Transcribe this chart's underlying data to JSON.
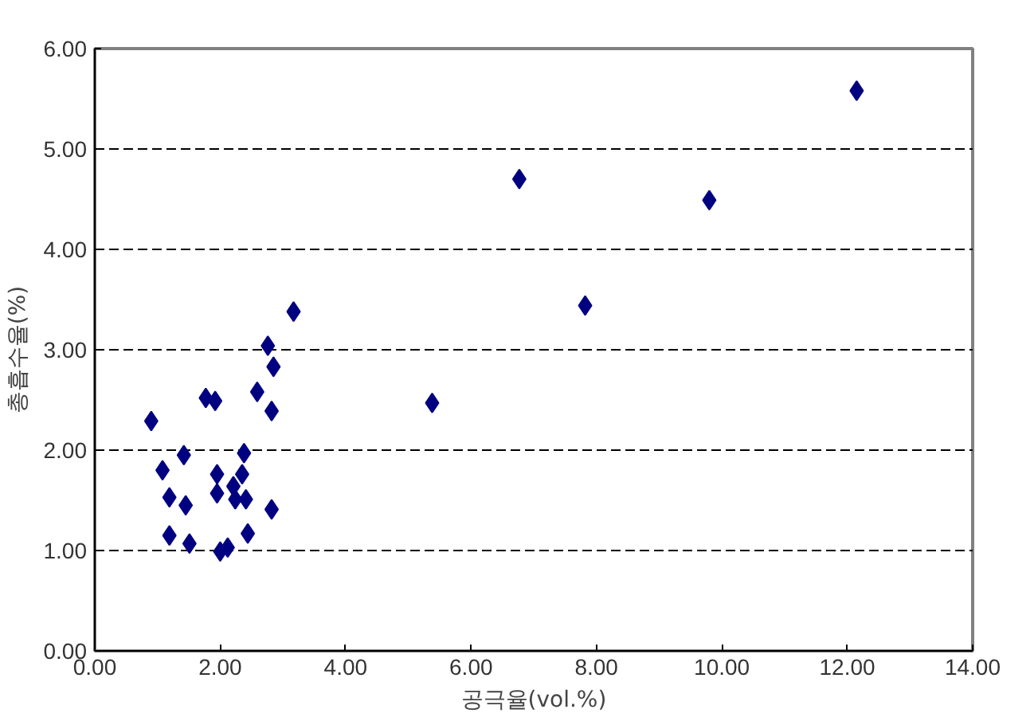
{
  "chart_data": {
    "type": "scatter",
    "xlabel": "공극율(vol.%)",
    "ylabel": "총흡수율(%)",
    "x": [
      0.9,
      1.08,
      1.19,
      1.19,
      1.42,
      1.45,
      1.51,
      1.77,
      1.92,
      1.95,
      1.95,
      2.0,
      2.12,
      2.21,
      2.24,
      2.35,
      2.38,
      2.41,
      2.44,
      2.59,
      2.76,
      2.85,
      2.82,
      2.82,
      3.17,
      5.38,
      6.77,
      7.82,
      9.8,
      12.15
    ],
    "values": [
      2.29,
      1.8,
      1.53,
      1.15,
      1.95,
      1.45,
      1.07,
      2.52,
      2.49,
      1.57,
      1.76,
      0.99,
      1.03,
      1.64,
      1.51,
      1.76,
      1.97,
      1.51,
      1.17,
      2.58,
      3.04,
      2.83,
      2.39,
      1.41,
      3.38,
      2.47,
      4.7,
      3.44,
      4.49,
      5.58
    ],
    "color": "#000080",
    "marker": "diamond",
    "grid": "y",
    "xlim": [
      0,
      14
    ],
    "xticks": [
      {
        "value": 0,
        "label": "0.00"
      },
      {
        "value": 2,
        "label": "2.00"
      },
      {
        "value": 4,
        "label": "4.00"
      },
      {
        "value": 6,
        "label": "6.00"
      },
      {
        "value": 8,
        "label": "8.00"
      },
      {
        "value": 10,
        "label": "10.00"
      },
      {
        "value": 12,
        "label": "12.00"
      },
      {
        "value": 14,
        "label": "14.00"
      }
    ],
    "ylim": [
      0,
      6
    ],
    "yticks": [
      {
        "value": 0,
        "label": "0.00"
      },
      {
        "value": 1,
        "label": "1.00"
      },
      {
        "value": 2,
        "label": "2.00"
      },
      {
        "value": 3,
        "label": "3.00"
      },
      {
        "value": 4,
        "label": "4.00"
      },
      {
        "value": 5,
        "label": "5.00"
      },
      {
        "value": 6,
        "label": "6.00"
      }
    ]
  }
}
